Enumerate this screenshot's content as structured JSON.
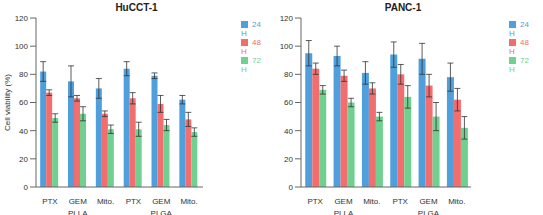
{
  "chart_data": [
    {
      "type": "bar",
      "title": "HuCCT-1",
      "y_label": "Cell viability (%)",
      "categories": [
        "PTX",
        "GEM",
        "Mito.",
        "PTX",
        "GEM",
        "Mito."
      ],
      "group_labels": [
        "PLLA",
        "PLGA"
      ],
      "series": [
        {
          "name": "24H",
          "color": "#4f9fdc",
          "values": [
            82,
            75,
            70,
            84,
            79,
            62
          ],
          "errors": [
            7,
            11,
            7,
            5,
            2,
            3
          ]
        },
        {
          "name": "48H",
          "color": "#f26d6d",
          "values": [
            67,
            63,
            52,
            63,
            59,
            48
          ],
          "errors": [
            2,
            2,
            2,
            4,
            6,
            5
          ]
        },
        {
          "name": "72H",
          "color": "#6fd08f",
          "values": [
            49,
            52,
            41,
            41,
            44,
            39
          ],
          "errors": [
            3,
            5,
            3,
            5,
            4,
            3
          ]
        }
      ],
      "ylim": [
        0,
        120
      ],
      "yticks": [
        0,
        20,
        40,
        60,
        80,
        100,
        120
      ],
      "legend": "right"
    },
    {
      "type": "bar",
      "title": "PANC-1",
      "categories": [
        "PTX",
        "GEM",
        "Mito.",
        "PTX",
        "GEM",
        "Mito."
      ],
      "group_labels": [
        "PLLA",
        "PLGA"
      ],
      "series": [
        {
          "name": "24H",
          "color": "#4f9fdc",
          "values": [
            95,
            93,
            81,
            94,
            91,
            78
          ],
          "errors": [
            9,
            7,
            8,
            9,
            11,
            10
          ]
        },
        {
          "name": "48H",
          "color": "#f26d6d",
          "values": [
            84,
            79,
            70,
            80,
            72,
            62
          ],
          "errors": [
            4,
            4,
            4,
            7,
            8,
            8
          ]
        },
        {
          "name": "72H",
          "color": "#6fd08f",
          "values": [
            69,
            60,
            50,
            64,
            50,
            42
          ],
          "errors": [
            3,
            3,
            3,
            8,
            10,
            8
          ]
        }
      ],
      "ylim": [
        0,
        120
      ],
      "yticks": [
        0,
        20,
        40,
        60,
        80,
        100,
        120
      ],
      "legend": "right"
    }
  ]
}
